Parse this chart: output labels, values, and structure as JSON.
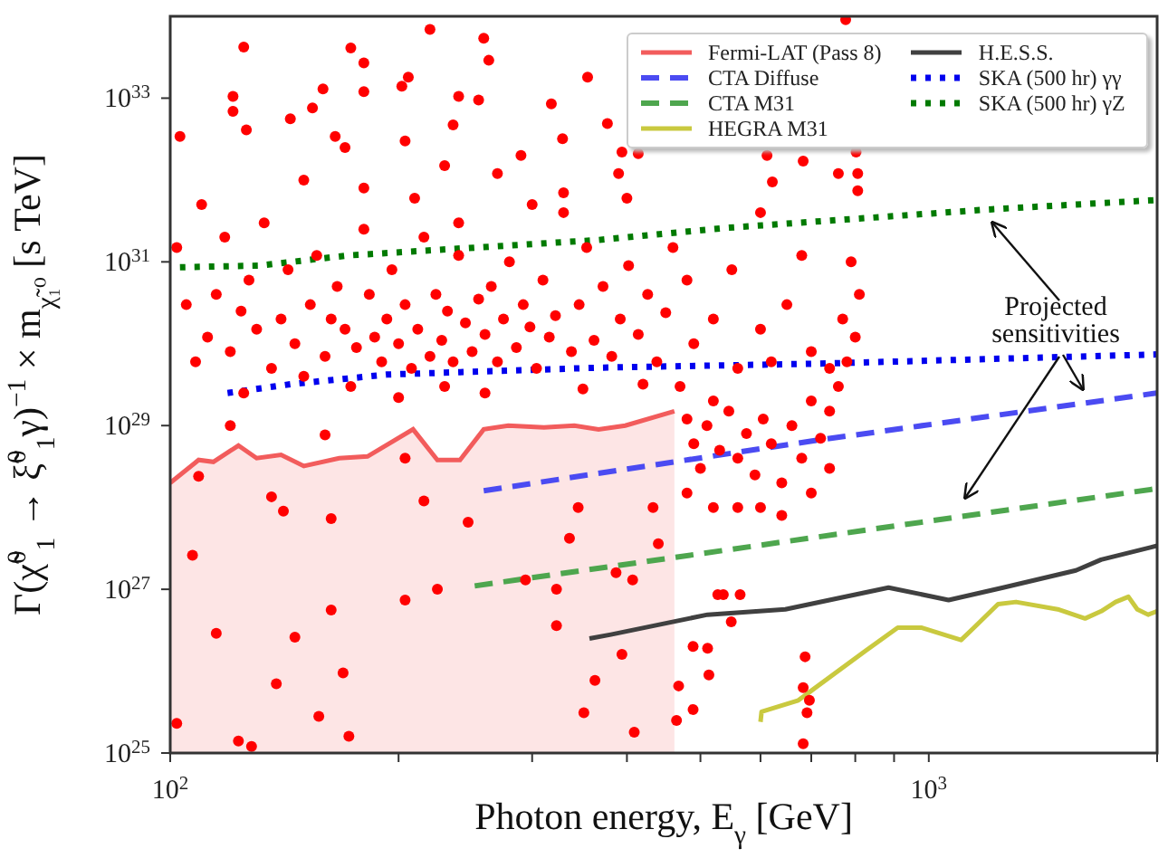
{
  "chart_data": {
    "type": "line",
    "xlabel": "Photon energy,  E$_{γ}$ [GeV]",
    "ylabel": "Γ(χ̃$^{0}$$_{1}$ → ξ̃$^{0}$$_{1}$γ)$^{−1}$ × m$_{χ̃₁⁰}$ [s TeV]",
    "log": "xy",
    "grid": false,
    "legend": "top right",
    "xlim": [
      100,
      2000
    ],
    "ylim": [
      1e+25,
      1e+34
    ],
    "xticks": [
      {
        "value": 100,
        "label": "10$^{2}$"
      },
      {
        "value": 200,
        "label": null
      },
      {
        "value": 300,
        "label": null
      },
      {
        "value": 400,
        "label": null
      },
      {
        "value": 500,
        "label": null
      },
      {
        "value": 600,
        "label": null
      },
      {
        "value": 700,
        "label": null
      },
      {
        "value": 800,
        "label": null
      },
      {
        "value": 900,
        "label": null
      },
      {
        "value": 1000,
        "label": "10$^{3}$"
      },
      {
        "value": 2000,
        "label": null
      }
    ],
    "yticks": [
      {
        "value": 1e+25,
        "label": "10$^{25}$"
      },
      {
        "value": 1e+27,
        "label": "10$^{27}$"
      },
      {
        "value": 1e+29,
        "label": "10$^{29}$"
      },
      {
        "value": 1e+31,
        "label": "10$^{31}$"
      },
      {
        "value": 1e+33,
        "label": "10$^{33}$"
      }
    ],
    "annotations": [
      "Projected sensitivities"
    ],
    "series": [
      {
        "name": "Fermi-LAT (Pass 8)",
        "type": "area",
        "color": "#f25c5c",
        "line_style": "solid",
        "x": [
          100,
          109,
          114,
          123,
          130,
          140,
          150,
          167,
          182,
          209,
          225,
          241,
          259,
          279,
          311,
          341,
          367,
          398,
          462
        ],
        "values": [
          2e+28,
          3.8e+28,
          3.6e+28,
          5.7e+28,
          4e+28,
          4.4e+28,
          3.2e+28,
          4e+28,
          4.2e+28,
          9e+28,
          3.8e+28,
          3.8e+28,
          9e+28,
          1e+29,
          9.5e+28,
          1e+29,
          9e+28,
          1e+29,
          1.5e+29
        ]
      },
      {
        "name": "CTA Diffuse",
        "color": "#4b4bf2",
        "line_style": "dashed",
        "x": [
          259,
          711,
          2000
        ],
        "values": [
          1.6e+28,
          6.6e+28,
          2.5e+29
        ]
      },
      {
        "name": "CTA M31",
        "color": "#4ea64e",
        "line_style": "dashed",
        "x": [
          252,
          2000
        ],
        "values": [
          1.1e+27,
          1.7e+28
        ]
      },
      {
        "name": "HEGRA M31",
        "color": "#c9c93f",
        "line_style": "solid",
        "x": [
          600,
          602,
          673,
          699,
          824,
          910,
          977,
          1103,
          1147,
          1234,
          1303,
          1479,
          1607,
          1688,
          1763,
          1833,
          1883,
          1946,
          2000
        ],
        "values": [
          2.4e+25,
          3.2e+25,
          4.4e+25,
          5.7e+25,
          1.75e+26,
          3.4e+26,
          3.4e+26,
          2.4e+26,
          3.4e+26,
          6.6e+26,
          7e+26,
          5.7e+26,
          4.4e+26,
          5.4e+26,
          7e+26,
          8.1e+26,
          5.7e+26,
          4.9e+26,
          5.4e+26
        ]
      },
      {
        "name": "H.E.S.S.",
        "color": "#404040",
        "line_style": "solid",
        "x": [
          357,
          381,
          511,
          647,
          885,
          1062,
          1253,
          1563,
          1687,
          2000
        ],
        "values": [
          2.5e+26,
          2.8e+26,
          4.9e+26,
          5.7e+26,
          1.05e+27,
          7.4e+26,
          1.05e+27,
          1.7e+27,
          2.3e+27,
          3.4e+27
        ]
      },
      {
        "name": "SKA (500 hr) γγ",
        "color": "#0000ee",
        "line_style": "dotted",
        "x": [
          119,
          144,
          193,
          367,
          711,
          2000
        ],
        "values": [
          2.5e+29,
          3.2e+29,
          4.2e+29,
          5.1e+29,
          5.7e+29,
          7.4e+29
        ]
      },
      {
        "name": "SKA (500 hr) γZ",
        "color": "#007a00",
        "line_style": "dotted",
        "x": [
          103,
          131,
          172,
          367,
          540,
          1213,
          2000
        ],
        "values": [
          8.6e+30,
          9e+30,
          1.2e+31,
          1.85e+31,
          2.6e+31,
          4.4e+31,
          5.7e+31
        ]
      },
      {
        "type": "scatter",
        "color": "#ff0000",
        "marker": "circle",
        "x": [
          125,
          173,
          220,
          259,
          263,
          121,
          121,
          103,
          126,
          154,
          159,
          180,
          180,
          202,
          206,
          240,
          255,
          236,
          204,
          165,
          144,
          318,
          329,
          355,
          777,
          377,
          394,
          414,
          802,
          806,
          612,
          683,
          760,
          806,
          622,
          102,
          105,
          108,
          112,
          115,
          118,
          120,
          124,
          127,
          130,
          133,
          136,
          140,
          143,
          146,
          150,
          153,
          156,
          160,
          163,
          166,
          170,
          173,
          176,
          180,
          183,
          186,
          190,
          193,
          196,
          200,
          204,
          208,
          212,
          216,
          220,
          224,
          228,
          232,
          236,
          240,
          245,
          250,
          255,
          260,
          265,
          270,
          275,
          280,
          286,
          292,
          298,
          304,
          310,
          316,
          322,
          330,
          338,
          346,
          354,
          362,
          372,
          382,
          392,
          402,
          414,
          426,
          438,
          450,
          460,
          240,
          210,
          300,
          180,
          150,
          270,
          330,
          400,
          260,
          230,
          200,
          350,
          420,
          125,
          110,
          390,
          290,
          230,
          170,
          470,
          480,
          490,
          500,
          510,
          520,
          530,
          545,
          560,
          575,
          590,
          605,
          620,
          640,
          660,
          680,
          700,
          720,
          740,
          760,
          780,
          800,
          810,
          790,
          770,
          740,
          700,
          650,
          600,
          560,
          520,
          490,
          480,
          620,
          680,
          550,
          600,
          520,
          560,
          600,
          640,
          480,
          700,
          740,
          107,
          102,
          115,
          123,
          146,
          138,
          157,
          169,
          163,
          172,
          204,
          225,
          323,
          323,
          294,
          363,
          351,
          336,
          247,
          204,
          216,
          163,
          141,
          136,
          109,
          160,
          120,
          128,
          394,
          409,
          387,
          407,
          440,
          433,
          345,
          489,
          511,
          513,
          468,
          489,
          465,
          527,
          536,
          564,
          549,
          687,
          683,
          691,
          683,
          696
        ],
        "values": [
          4.2e+33,
          4.1e+33,
          6.9e+33,
          5.4e+33,
          2.9e+33,
          1.05e+33,
          6.9e+32,
          3.4e+32,
          4.1e+32,
          7.6e+32,
          1.3e+33,
          2.7e+33,
          1.2e+33,
          1.4e+33,
          1.8e+33,
          1.05e+33,
          9.5e+32,
          4.7e+32,
          3e+32,
          3.4e+32,
          5.6e+32,
          8.5e+32,
          3.2e+32,
          1.8e+33,
          9.1e+33,
          4.9e+32,
          2.2e+32,
          2.1e+32,
          2.2e+32,
          1.2e+32,
          2e+32,
          1.7e+32,
          1.2e+32,
          7.4e+31,
          9.5e+31,
          1.5e+31,
          3e+30,
          6e+29,
          1.2e+30,
          4e+30,
          2e+31,
          8e+29,
          2.5e+30,
          6e+30,
          1.5e+30,
          3e+31,
          5e+29,
          2e+30,
          8e+30,
          1e+30,
          4e+29,
          3e+30,
          1.2e+31,
          7e+29,
          2e+30,
          5e+30,
          1.5e+30,
          3e+29,
          9e+29,
          2.5e+31,
          4e+30,
          1.2e+30,
          6e+29,
          2e+30,
          8e+30,
          1e+30,
          3e+30,
          5e+29,
          1.5e+30,
          2e+31,
          7e+29,
          4e+30,
          1.1e+30,
          2.5e+30,
          6e+29,
          1.2e+31,
          1.8e+30,
          8e+29,
          3.5e+30,
          1.3e+30,
          5e+30,
          6e+29,
          2e+30,
          1e+31,
          9e+29,
          3e+30,
          1.6e+30,
          5e+29,
          6e+30,
          1.2e+30,
          2.2e+30,
          4e+31,
          8e+29,
          3e+30,
          1.5e+31,
          1.1e+30,
          5e+30,
          7e+29,
          2e+30,
          9e+30,
          1.3e+30,
          4e+30,
          6e+29,
          2.4e+30,
          1.5e+31,
          3e+31,
          6e+31,
          5e+31,
          8e+31,
          1e+32,
          1.2e+32,
          7e+31,
          6e+31,
          2.5e+29,
          3e+29,
          2.2e+29,
          2.8e+29,
          3.2e+29,
          2.5e+29,
          5e+31,
          1.2e+32,
          2e+32,
          1.5e+32,
          2.5e+32,
          3e+29,
          1.2e+29,
          6e+28,
          3e+28,
          1e+29,
          2e+29,
          5e+28,
          1.5e+29,
          4e+28,
          8e+28,
          2.5e+28,
          1.2e+29,
          6e+28,
          2e+28,
          1e+29,
          4e+28,
          2e+29,
          7e+28,
          1.5e+29,
          3e+29,
          6e+29,
          1.2e+30,
          4e+30,
          1e+31,
          2e+30,
          5e+29,
          8e+29,
          3e+30,
          1.5e+30,
          5e+29,
          2e+30,
          1e+30,
          6e+30,
          6e+29,
          1.2e+31,
          8e+30,
          4e+31,
          1e+28,
          1e+28,
          1e+28,
          8e+27,
          1.5e+28,
          1.5e+28,
          3e+28,
          2.6e+27,
          2.3e+25,
          2.9e+26,
          1.4e+25,
          2.6e+26,
          7e+25,
          2.8e+25,
          9.5e+25,
          5.6e+26,
          1.6e+25,
          7.4e+26,
          1e+27,
          3.6e+26,
          1e+27,
          1.3e+27,
          7.7e+25,
          3.1e+25,
          4.2e+27,
          6.6e+27,
          4e+28,
          1.2e+28,
          7.3e+27,
          9e+27,
          1.35e+28,
          2.4e+28,
          7.7e+28,
          1e+29,
          1.2e+25,
          1.6e+26,
          1.8e+25,
          1.6e+27,
          1.3e+27,
          3.6e+27,
          1e+28,
          1e+28,
          2e+26,
          1.9e+26,
          9e+25,
          6.6e+25,
          3.4e+25,
          2.5e+25,
          8.6e+26,
          8.6e+26,
          8.6e+26,
          4e+26,
          1.5e+26,
          6.3e+25,
          3.1e+25,
          1.3e+25,
          4.4e+25
        ]
      }
    ]
  }
}
